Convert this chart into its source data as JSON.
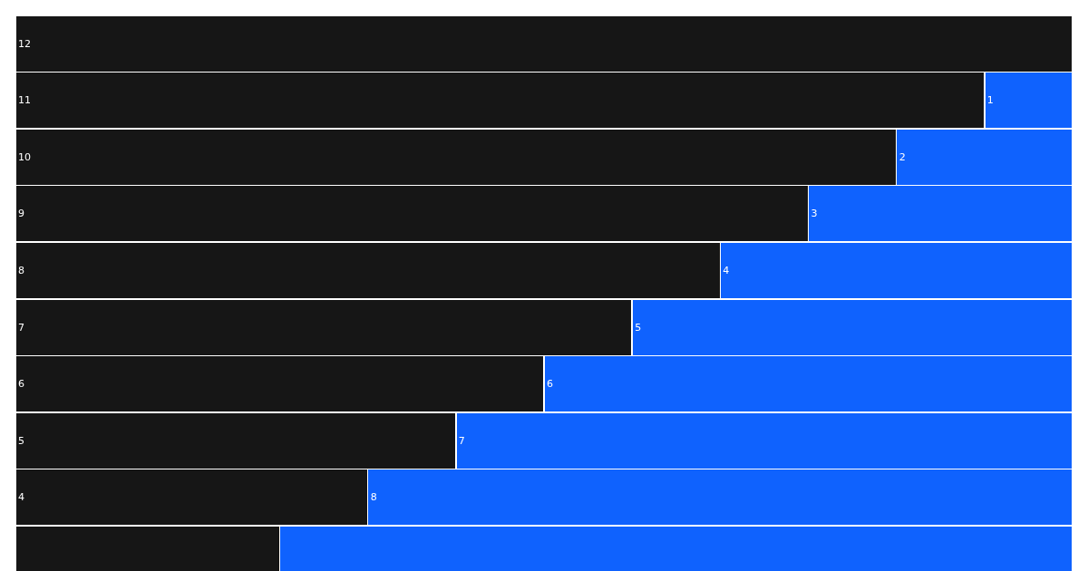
{
  "chart_data": {
    "type": "bar",
    "orientation": "horizontal",
    "stacked": true,
    "categories": [
      null,
      null,
      null,
      null,
      null,
      null,
      null,
      null,
      null,
      null
    ],
    "xlim": [
      0,
      12
    ],
    "series": [
      {
        "color": "#161616",
        "values": [
          12,
          11,
          10,
          9,
          8,
          7,
          6,
          5,
          4,
          3
        ],
        "value_labels": [
          "12",
          "11",
          "10",
          "9",
          "8",
          "7",
          "6",
          "5",
          "4",
          null
        ]
      },
      {
        "color": "#0f62fe",
        "values": [
          0,
          1,
          2,
          3,
          4,
          5,
          6,
          7,
          8,
          9
        ],
        "value_labels": [
          null,
          "1",
          "2",
          "3",
          "4",
          "5",
          "6",
          "7",
          "8",
          null
        ]
      }
    ]
  }
}
